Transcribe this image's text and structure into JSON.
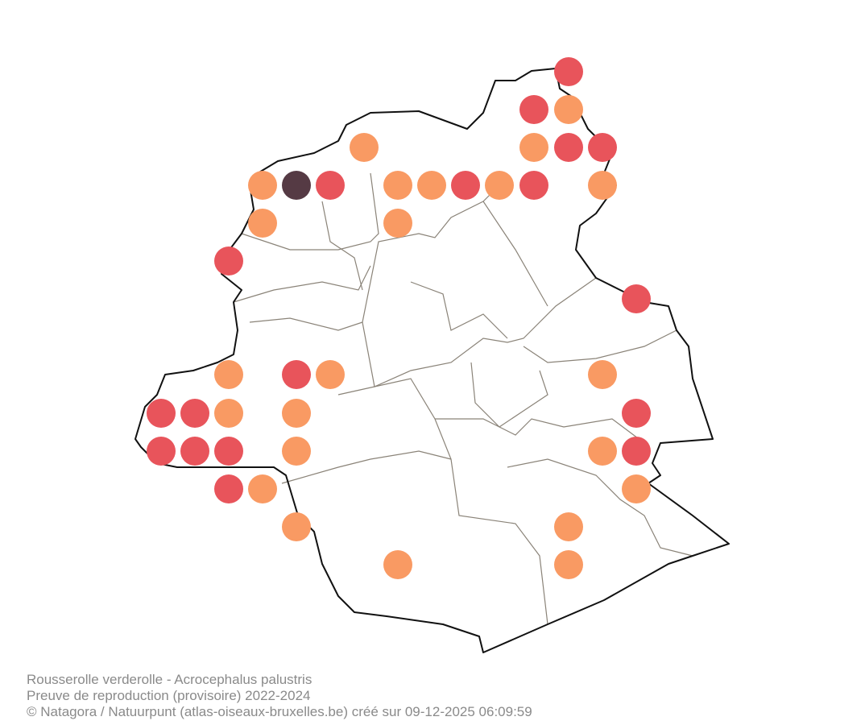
{
  "caption": {
    "species": "Rousserolle verderolle - Acrocephalus palustris",
    "subtitle": "Preuve de reproduction (provisoire) 2022-2024",
    "credit": "© Natagora / Natuurpunt (atlas-oiseaux-bruxelles.be) créé sur 09-12-2025 06:09:59"
  }
}
